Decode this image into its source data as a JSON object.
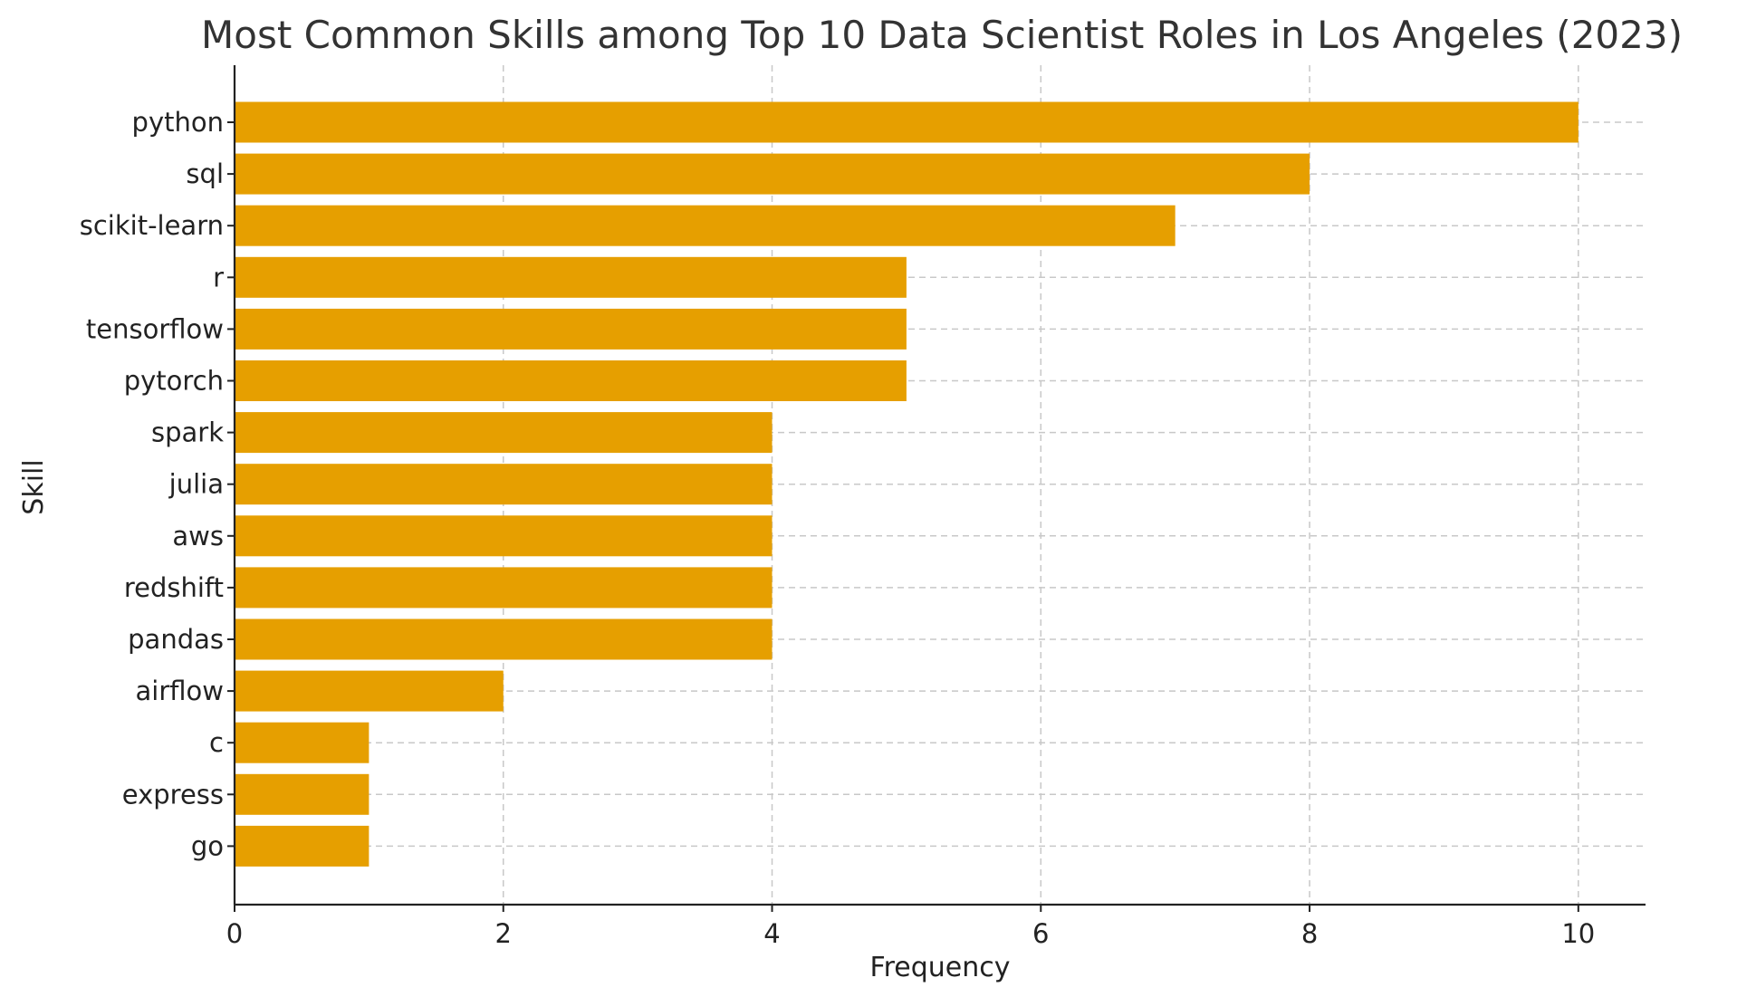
{
  "chart_data": {
    "type": "bar",
    "orientation": "horizontal",
    "title": "Most Common Skills among Top 10 Data Scientist Roles in Los Angeles (2023)",
    "xlabel": "Frequency",
    "ylabel": "Skill",
    "categories": [
      "python",
      "sql",
      "scikit-learn",
      "r",
      "tensorflow",
      "pytorch",
      "spark",
      "julia",
      "aws",
      "redshift",
      "pandas",
      "airflow",
      "c",
      "express",
      "go"
    ],
    "values": [
      10,
      8,
      7,
      5,
      5,
      5,
      4,
      4,
      4,
      4,
      4,
      2,
      1,
      1,
      1
    ],
    "xlim": [
      0,
      10.5
    ],
    "xticks": [
      0,
      2,
      4,
      6,
      8,
      10
    ],
    "grid": true,
    "bar_color": "#E69F00"
  }
}
